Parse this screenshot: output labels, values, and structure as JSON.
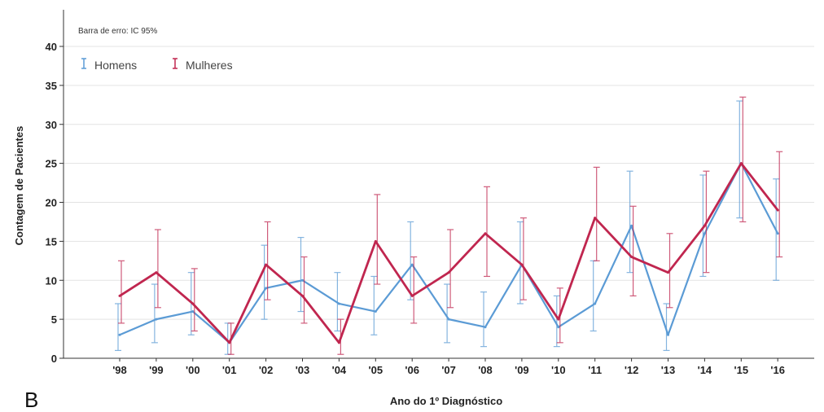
{
  "panel_label": "B",
  "chart_data": {
    "type": "line",
    "note": "Barra de erro: IC 95%",
    "xlabel": "Ano do 1º Diagnóstico",
    "ylabel": "Contagem de Pacientes",
    "ylim": [
      0,
      40
    ],
    "yticks": [
      0,
      5,
      10,
      15,
      20,
      25,
      30,
      35,
      40
    ],
    "grid": true,
    "legend_position": "top-left",
    "categories": [
      "'98",
      "'99",
      "'00",
      "'01",
      "'02",
      "'03",
      "'04",
      "'05",
      "'06",
      "'07",
      "'08",
      "'09",
      "'10",
      "'11",
      "'12",
      "'13",
      "'14",
      "'15",
      "'16"
    ],
    "series": [
      {
        "name": "Homens",
        "color": "#5b9bd5",
        "values": [
          3,
          5,
          6,
          2,
          9,
          10,
          7,
          6,
          12,
          5,
          4,
          12,
          4,
          7,
          17,
          3,
          16,
          25,
          16
        ],
        "ci_low": [
          1,
          2,
          3,
          0.5,
          5,
          6,
          3.5,
          3,
          7.5,
          2,
          1.5,
          7,
          1.5,
          3.5,
          11,
          1,
          10.5,
          18,
          10
        ],
        "ci_high": [
          7,
          9.5,
          11,
          4.5,
          14.5,
          15.5,
          11,
          10.5,
          17.5,
          9.5,
          8.5,
          17.5,
          8,
          12.5,
          24,
          7,
          23.5,
          33,
          23
        ]
      },
      {
        "name": "Mulheres",
        "color": "#c0264f",
        "values": [
          8,
          11,
          7,
          2,
          12,
          8,
          2,
          15,
          8,
          11,
          16,
          12,
          5,
          18,
          13,
          11,
          17,
          25,
          19
        ],
        "ci_low": [
          4.5,
          6.5,
          3.5,
          0.5,
          7.5,
          4.5,
          0.5,
          9.5,
          4.5,
          6.5,
          10.5,
          7.5,
          2,
          12.5,
          8,
          6.5,
          11,
          17.5,
          13
        ],
        "ci_high": [
          12.5,
          16.5,
          11.5,
          4.5,
          17.5,
          13,
          5,
          21,
          13,
          16.5,
          22,
          18,
          9,
          24.5,
          19.5,
          16,
          24,
          33.5,
          26.5
        ]
      }
    ]
  }
}
